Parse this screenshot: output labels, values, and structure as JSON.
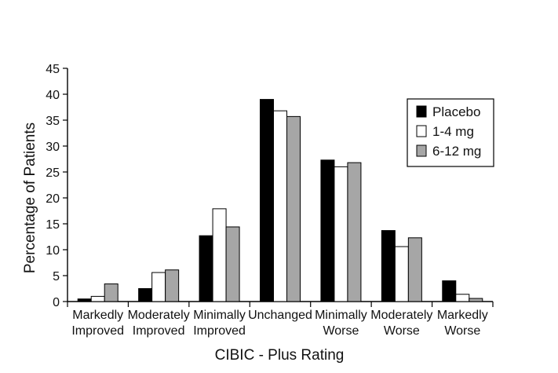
{
  "chart_data": {
    "type": "bar",
    "title": "",
    "xlabel": "CIBIC - Plus Rating",
    "ylabel": "Percentage of Patients",
    "ylim": [
      0,
      45
    ],
    "yticks": [
      0,
      5,
      10,
      15,
      20,
      25,
      30,
      35,
      40,
      45
    ],
    "grid": false,
    "legend_position": "top-right",
    "categories": [
      [
        "Markedly",
        "Improved"
      ],
      [
        "Moderately",
        "Improved"
      ],
      [
        "Minimally",
        "Improved"
      ],
      [
        "Unchanged"
      ],
      [
        "Minimally",
        "Worse"
      ],
      [
        "Moderately",
        "Worse"
      ],
      [
        "Markedly",
        "Worse"
      ]
    ],
    "series": [
      {
        "name": "Placebo",
        "color": "#000000",
        "values": [
          0.5,
          2.5,
          12.7,
          39.0,
          27.3,
          13.7,
          4.0
        ]
      },
      {
        "name": "1-4 mg",
        "color": "#ffffff",
        "values": [
          1.0,
          5.6,
          17.9,
          36.8,
          26.0,
          10.6,
          1.4
        ]
      },
      {
        "name": "6-12 mg",
        "color": "#a6a6a6",
        "values": [
          3.4,
          6.1,
          14.4,
          35.7,
          26.8,
          12.3,
          0.6
        ]
      }
    ]
  }
}
